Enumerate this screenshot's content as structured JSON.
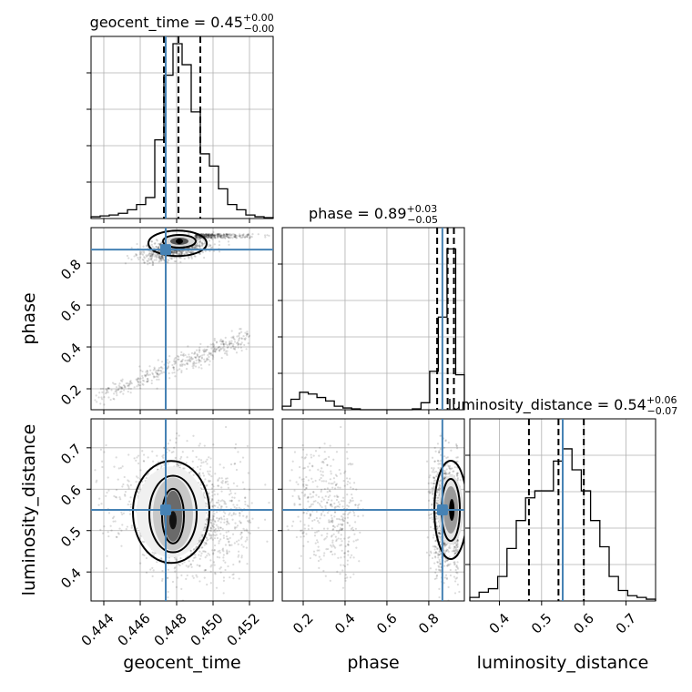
{
  "chart_data": {
    "type": "corner",
    "parameters": [
      "geocent_time",
      "phase",
      "luminosity_distance"
    ],
    "titles": {
      "geocent_time": {
        "name": "geocent_time",
        "median": "0.45",
        "plus": "+0.00",
        "minus": "−0.00"
      },
      "phase": {
        "name": "phase",
        "median": "0.89",
        "plus": "+0.03",
        "minus": "−0.05"
      },
      "luminosity_distance": {
        "name": "luminosity_distance",
        "median": "0.54",
        "plus": "+0.06",
        "minus": "−0.07"
      }
    },
    "ranges": {
      "geocent_time": [
        0.4433,
        0.4533
      ],
      "phase": [
        0.1,
        0.97
      ],
      "luminosity_distance": [
        0.33,
        0.77
      ]
    },
    "ticks": {
      "geocent_time": [
        0.444,
        0.446,
        0.448,
        0.45,
        0.452
      ],
      "phase_x": [
        0.2,
        0.4,
        0.6,
        0.8
      ],
      "phase_y": [
        0.2,
        0.4,
        0.6,
        0.8
      ],
      "luminosity_distance_x": [
        0.4,
        0.5,
        0.6,
        0.7
      ],
      "luminosity_distance_y": [
        0.4,
        0.5,
        0.6,
        0.7
      ]
    },
    "tick_labels": {
      "geocent_time": [
        "0.444",
        "0.446",
        "0.448",
        "0.450",
        "0.452"
      ],
      "phase_x": [
        "0.2",
        "0.4",
        "0.6",
        "0.8"
      ],
      "phase_y": [
        "0.2",
        "0.4",
        "0.6",
        "0.8"
      ],
      "luminosity_distance_x": [
        "0.4",
        "0.5",
        "0.6",
        "0.7"
      ],
      "luminosity_distance_y": [
        "0.4",
        "0.5",
        "0.6",
        "0.7"
      ]
    },
    "truths": {
      "geocent_time": 0.4474,
      "phase": 0.865,
      "luminosity_distance": 0.55
    },
    "quantiles": {
      "geocent_time": [
        0.4473,
        0.4481,
        0.4493
      ],
      "phase": [
        0.84,
        0.89,
        0.92
      ],
      "luminosity_distance": [
        0.47,
        0.54,
        0.6
      ]
    },
    "histograms": {
      "geocent_time": [
        0.01,
        0.015,
        0.02,
        0.03,
        0.05,
        0.08,
        0.12,
        0.45,
        0.82,
        1.0,
        0.88,
        0.61,
        0.37,
        0.3,
        0.17,
        0.08,
        0.05,
        0.02,
        0.01,
        0.005
      ],
      "phase": [
        0.02,
        0.06,
        0.1,
        0.09,
        0.07,
        0.05,
        0.02,
        0.01,
        0.005,
        0.0,
        0.0,
        0.0,
        0.0,
        0.0,
        0.0,
        0.005,
        0.04,
        0.22,
        0.53,
        0.92,
        0.2
      ],
      "luminosity_distance": [
        0.02,
        0.05,
        0.07,
        0.14,
        0.3,
        0.46,
        0.59,
        0.63,
        0.63,
        0.8,
        0.87,
        0.75,
        0.63,
        0.46,
        0.31,
        0.14,
        0.06,
        0.03,
        0.02,
        0.01
      ]
    },
    "xlabels": [
      "geocent_time",
      "phase",
      "luminosity_distance"
    ],
    "ylabels": [
      "phase",
      "luminosity_distance"
    ],
    "grid": true
  },
  "colors": {
    "truth": "#4682b4",
    "hist": "#000000",
    "grid": "#b0b0b0"
  }
}
